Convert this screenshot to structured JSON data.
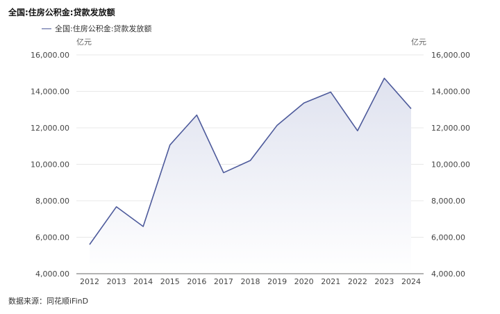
{
  "header": {
    "title": "全国:住房公积金:贷款发放额",
    "source": "数据来源：同花顺iFinD"
  },
  "colors": {
    "line": "#4d5a9b",
    "area_top": "#dfe2ef",
    "grid": "#e8e8e8"
  },
  "chart_data": {
    "type": "area",
    "title": "全国:住房公积金:贷款发放额",
    "x": [
      "2012",
      "2013",
      "2014",
      "2015",
      "2016",
      "2017",
      "2018",
      "2019",
      "2020",
      "2021",
      "2022",
      "2023",
      "2024"
    ],
    "series": [
      {
        "name": "全国:住房公积金:贷款发放额",
        "values": [
          5600,
          7670,
          6590,
          11060,
          12700,
          9540,
          10210,
          12140,
          13360,
          13960,
          11840,
          14720,
          13050
        ]
      }
    ],
    "y_unit_left": "亿元",
    "y_unit_right": "亿元",
    "ylim": [
      4000,
      16000
    ],
    "yticks": [
      4000,
      6000,
      8000,
      10000,
      12000,
      14000,
      16000
    ],
    "ytick_labels": [
      "4,000.00",
      "6,000.00",
      "8,000.00",
      "10,000.00",
      "12,000.00",
      "14,000.00",
      "16,000.00"
    ],
    "grid": true,
    "legend_position": "top-left",
    "dual_axis": true
  }
}
